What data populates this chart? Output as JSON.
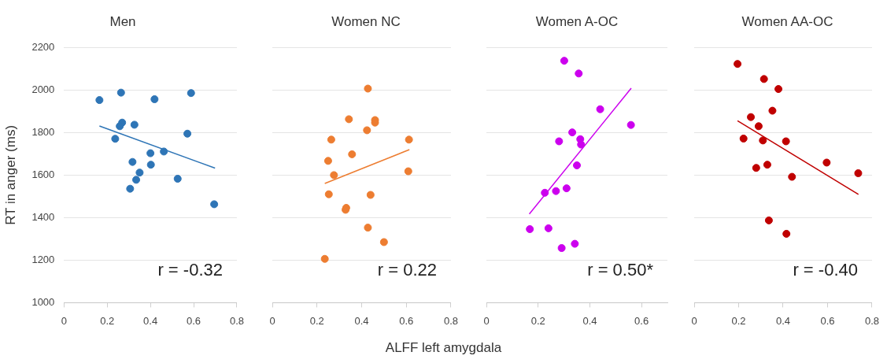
{
  "chart_data": [
    {
      "type": "scatter",
      "title": "Men",
      "ylabel": "RT in anger (ms)",
      "xlim": [
        0,
        0.8
      ],
      "xticks": [
        0,
        0.2,
        0.4,
        0.6,
        0.8
      ],
      "ylim": [
        1000,
        2200
      ],
      "yticks": [
        1000,
        1200,
        1400,
        1600,
        1800,
        2000,
        2200
      ],
      "grid": "y",
      "marker": "circle",
      "annotations": [
        "r = -0.32"
      ],
      "series": [
        {
          "color": "#2e75b6",
          "x": [
            0.164,
            0.264,
            0.419,
            0.588,
            0.269,
            0.258,
            0.326,
            0.571,
            0.237,
            0.462,
            0.4,
            0.317,
            0.402,
            0.35,
            0.526,
            0.334,
            0.306,
            0.695
          ],
          "values": [
            1953,
            1988,
            1957,
            1986,
            1847,
            1830,
            1837,
            1795,
            1771,
            1711,
            1703,
            1662,
            1649,
            1612,
            1583,
            1578,
            1536,
            1463
          ]
        },
        {
          "type": "line",
          "marker": "none",
          "color": "#2e75b6",
          "x": [
            0.164,
            0.699
          ],
          "values": [
            1831,
            1633
          ]
        }
      ]
    },
    {
      "type": "scatter",
      "title": "Women NC",
      "xlabel": "ALFF left amygdala",
      "xlim": [
        0,
        0.8
      ],
      "xticks": [
        0,
        0.2,
        0.4,
        0.6,
        0.8
      ],
      "ylim": [
        1000,
        2200
      ],
      "yticks": [
        1000,
        1200,
        1400,
        1600,
        1800,
        2000,
        2200
      ],
      "grid": "y",
      "tick_labels": "x",
      "marker": "circle",
      "annotations": [
        "r = 0.22"
      ],
      "series": [
        {
          "color": "#ed7d31",
          "x": [
            0.428,
            0.343,
            0.46,
            0.46,
            0.424,
            0.264,
            0.612,
            0.357,
            0.25,
            0.276,
            0.609,
            0.253,
            0.44,
            0.331,
            0.328,
            0.428,
            0.5,
            0.235
          ],
          "values": [
            2007,
            1863,
            1859,
            1847,
            1811,
            1767,
            1767,
            1698,
            1667,
            1600,
            1618,
            1510,
            1507,
            1446,
            1437,
            1353,
            1285,
            1206
          ]
        },
        {
          "type": "line",
          "marker": "none",
          "color": "#ed7d31",
          "x": [
            0.235,
            0.614
          ],
          "values": [
            1561,
            1720
          ]
        }
      ]
    },
    {
      "type": "scatter",
      "title": "Women A-OC",
      "xlim": [
        0,
        0.7
      ],
      "xticks": [
        0,
        0.2,
        0.4,
        0.6
      ],
      "ylim": [
        1000,
        2200
      ],
      "yticks": [
        1000,
        1200,
        1400,
        1600,
        1800,
        2000,
        2200
      ],
      "grid": "y",
      "tick_labels": "x",
      "marker": "circle",
      "annotations": [
        "r = 0.50*"
      ],
      "series": [
        {
          "color": "#cc00ee",
          "x": [
            0.301,
            0.357,
            0.44,
            0.559,
            0.332,
            0.281,
            0.363,
            0.366,
            0.35,
            0.226,
            0.269,
            0.31,
            0.168,
            0.24,
            0.342,
            0.291
          ],
          "values": [
            2138,
            2078,
            1910,
            1836,
            1801,
            1759,
            1769,
            1744,
            1646,
            1517,
            1525,
            1538,
            1346,
            1350,
            1277,
            1257
          ]
        },
        {
          "type": "line",
          "marker": "none",
          "color": "#cc00ee",
          "x": [
            0.166,
            0.56
          ],
          "values": [
            1417,
            2009
          ]
        }
      ]
    },
    {
      "type": "scatter",
      "title": "Women AA-OC",
      "xlim": [
        0,
        0.8
      ],
      "xticks": [
        0,
        0.2,
        0.4,
        0.6,
        0.8
      ],
      "ylim": [
        1000,
        2200
      ],
      "yticks": [
        1000,
        1200,
        1400,
        1600,
        1800,
        2000,
        2200
      ],
      "grid": "y",
      "tick_labels": "x",
      "marker": "circle",
      "annotations": [
        "r = -0.40"
      ],
      "series": [
        {
          "color": "#c00000",
          "x": [
            0.195,
            0.314,
            0.379,
            0.352,
            0.255,
            0.29,
            0.222,
            0.309,
            0.413,
            0.596,
            0.738,
            0.279,
            0.329,
            0.44,
            0.336,
            0.415
          ],
          "values": [
            2123,
            2052,
            2005,
            1903,
            1873,
            1830,
            1772,
            1763,
            1759,
            1659,
            1609,
            1634,
            1649,
            1592,
            1387,
            1324
          ]
        },
        {
          "type": "line",
          "marker": "none",
          "color": "#c00000",
          "x": [
            0.195,
            0.739
          ],
          "values": [
            1856,
            1509
          ]
        }
      ]
    }
  ]
}
